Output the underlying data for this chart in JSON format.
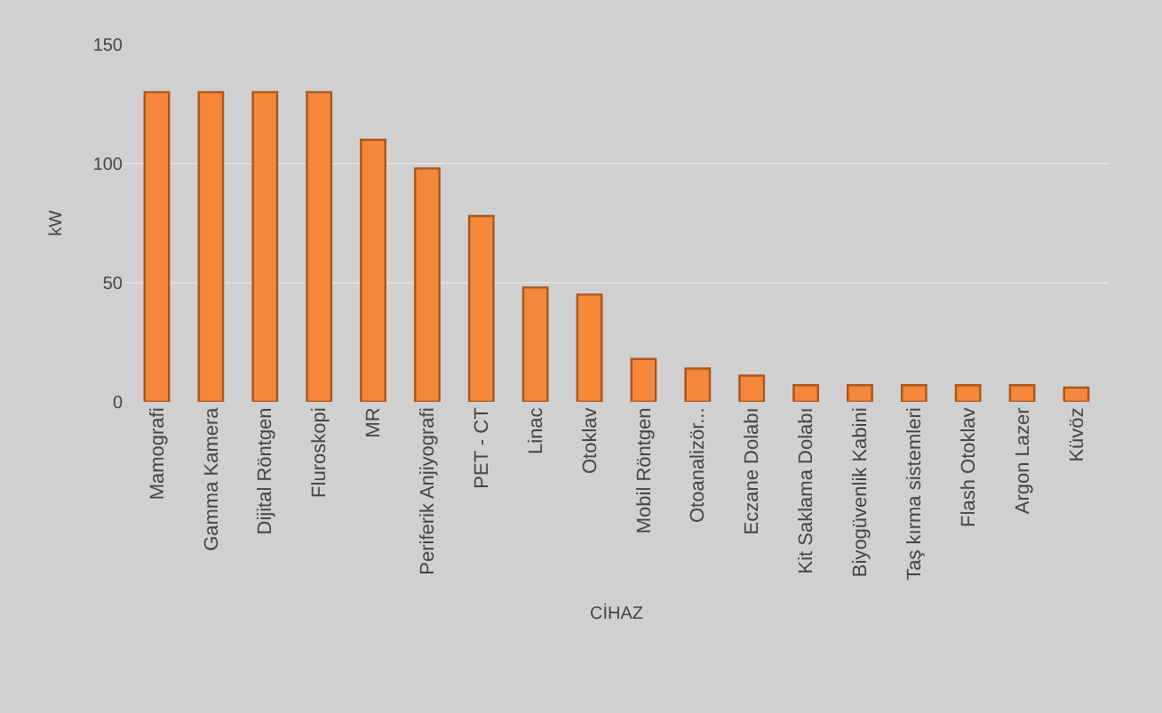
{
  "chart_data": {
    "type": "bar",
    "xlabel": "CİHAZ",
    "ylabel": "kW",
    "categories": [
      "Mamografi",
      "Gamma Kamera",
      "Dijital Röntgen",
      "Fluroskopi",
      "MR",
      "Periferik Anjiyografi",
      "PET - CT",
      "Linac",
      "Otoklav",
      "Mobil Röntgen",
      "Otoanalizör...",
      "Eczane Dolabı",
      "Kit Saklama Dolabı",
      "Biyogüvenlik Kabini",
      "Taş kırma sistemleri",
      "Flash Otoklav",
      "Argon Lazer",
      "Küvöz"
    ],
    "values": [
      130,
      130,
      130,
      130,
      110,
      98,
      78,
      48,
      45,
      18,
      14,
      11,
      7,
      7,
      7,
      7,
      7,
      6
    ],
    "color": "#f5873a",
    "ylim": [
      0,
      150
    ],
    "yticks": [
      0,
      50,
      100,
      150
    ],
    "grid": "y",
    "legend": false
  }
}
